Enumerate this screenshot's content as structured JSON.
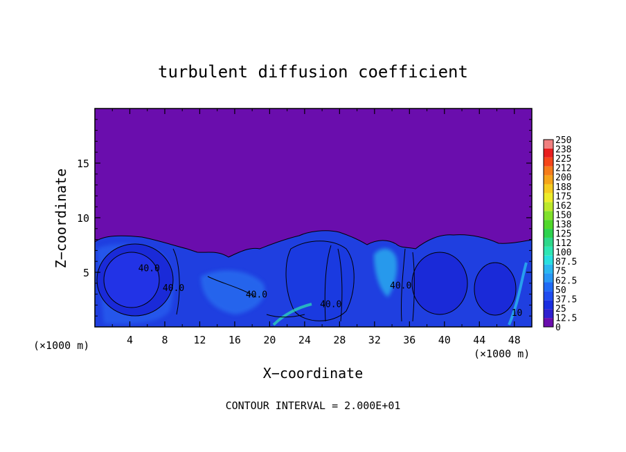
{
  "chart_data": {
    "type": "heatmap",
    "title": "turbulent diffusion coefficient",
    "xlabel": "X−coordinate",
    "ylabel": "Z−coordinate",
    "x_unit_left": "(×1000 m)",
    "x_unit_right": "(×1000 m)",
    "footer": "CONTOUR INTERVAL = 2.000E+01",
    "xlim": [
      0,
      50
    ],
    "ylim": [
      0,
      20
    ],
    "x_ticks": [
      4,
      8,
      12,
      16,
      20,
      24,
      28,
      32,
      36,
      40,
      44,
      48
    ],
    "y_ticks": [
      5,
      10,
      15
    ],
    "contour_labels": [
      {
        "text": "40.0",
        "x": 6.2,
        "y": 5.1
      },
      {
        "text": "40.0",
        "x": 9.0,
        "y": 3.3
      },
      {
        "text": "40.0",
        "x": 18.5,
        "y": 2.7
      },
      {
        "text": "40.0",
        "x": 27.0,
        "y": 1.8
      },
      {
        "text": "40.0",
        "x": 35.0,
        "y": 3.5
      },
      {
        "text": "10",
        "x": 48.3,
        "y": 1.0
      }
    ],
    "colorbar": {
      "levels": [
        "0",
        "12.5",
        "25",
        "37.5",
        "50",
        "62.5",
        "75",
        "87.5",
        "100",
        "112",
        "125",
        "138",
        "150",
        "162",
        "175",
        "188",
        "200",
        "212",
        "225",
        "238",
        "250"
      ],
      "colors": [
        "#6a0dad",
        "#2e1fcf",
        "#1a2ee0",
        "#1f4cf0",
        "#1f6af5",
        "#2898f5",
        "#2ab8f0",
        "#28e0e0",
        "#2ee6b4",
        "#2ed88a",
        "#2ed24e",
        "#50d82a",
        "#80e02a",
        "#bce82a",
        "#ecec2a",
        "#f5cc20",
        "#f5a41a",
        "#f57c1a",
        "#f5461a",
        "#e81e1e",
        "#f08080"
      ]
    }
  }
}
